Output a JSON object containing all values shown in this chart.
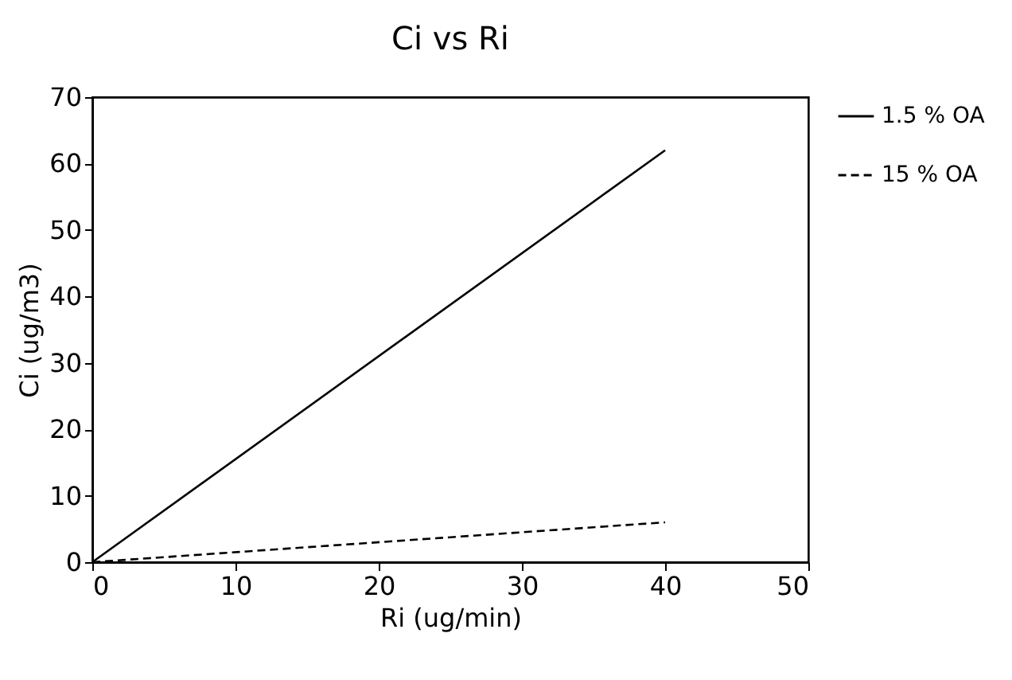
{
  "chart_data": {
    "type": "line",
    "title": "Ci vs Ri",
    "xlabel": "Ri (ug/min)",
    "ylabel": "Ci (ug/m3)",
    "x": [
      0,
      40
    ],
    "series": [
      {
        "name": "1.5 % OA",
        "color": "#000000",
        "values": [
          0,
          62
        ],
        "line_style": "solid"
      },
      {
        "name": "15 % OA",
        "color": "#000000",
        "values": [
          0,
          6
        ],
        "line_style": "dashed"
      }
    ],
    "xlim": [
      0,
      50
    ],
    "xticks": [
      0,
      10,
      20,
      30,
      40,
      50
    ],
    "ylim": [
      0,
      70
    ],
    "yticks": [
      0,
      10,
      20,
      30,
      40,
      50,
      60,
      70
    ],
    "grid": false,
    "legend": "top right",
    "marker": "none"
  }
}
